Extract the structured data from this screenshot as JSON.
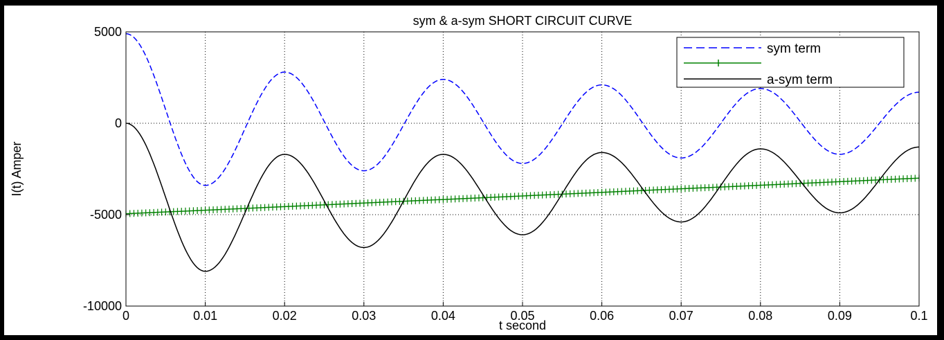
{
  "chart_data": {
    "type": "line",
    "title": "sym & a-sym SHORT CIRCUIT CURVE",
    "xlabel": "t  second",
    "ylabel": "I(t)  Amper",
    "xlim": [
      0,
      0.1
    ],
    "ylim": [
      -10000,
      5000
    ],
    "xticks": [
      0,
      0.01,
      0.02,
      0.03,
      0.04,
      0.05,
      0.06,
      0.07,
      0.08,
      0.09,
      0.1
    ],
    "xtick_labels": [
      "0",
      "0.01",
      "0.02",
      "0.03",
      "0.04",
      "0.05",
      "0.06",
      "0.07",
      "0.08",
      "0.09",
      "0.1"
    ],
    "yticks": [
      -10000,
      -5000,
      0,
      5000
    ],
    "ytick_labels": [
      "-10000",
      "-5000",
      "0",
      "5000"
    ],
    "grid": true,
    "legend_position": "top-right",
    "series": [
      {
        "name": "sym term",
        "color": "#0000ff",
        "style": "dashed",
        "x": [
          0,
          0.01,
          0.02,
          0.03,
          0.04,
          0.05,
          0.06,
          0.07,
          0.08,
          0.09,
          0.1
        ],
        "y": [
          4900,
          -3400,
          2800,
          -2600,
          2400,
          -2200,
          2100,
          -1900,
          1900,
          -1700,
          1700
        ]
      },
      {
        "name": "",
        "color": "#008000",
        "style": "plus-markers",
        "x": [
          0,
          0.1
        ],
        "y": [
          -4950,
          -3000
        ]
      },
      {
        "name": "a-sym term",
        "color": "#000000",
        "style": "solid",
        "x": [
          0,
          0.01,
          0.02,
          0.03,
          0.04,
          0.05,
          0.06,
          0.07,
          0.08,
          0.09,
          0.1
        ],
        "y": [
          0,
          -8100,
          -1700,
          -6800,
          -1700,
          -6100,
          -1600,
          -5400,
          -1400,
          -4900,
          -1300
        ]
      }
    ]
  }
}
